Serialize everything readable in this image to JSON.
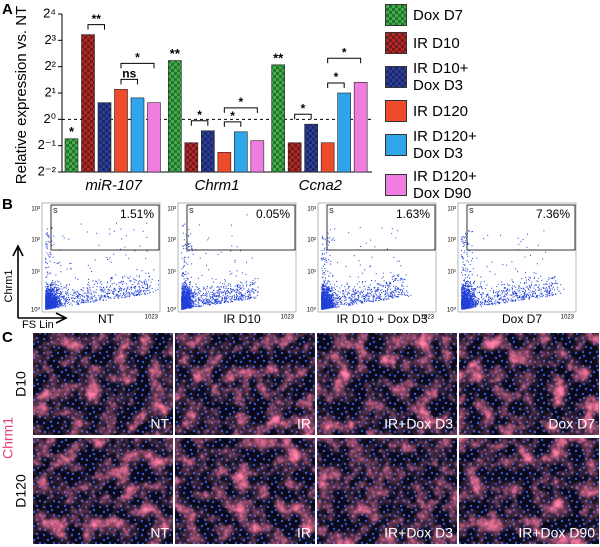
{
  "panel_labels": [
    "A",
    "B",
    "C"
  ],
  "chart_data": {
    "type": "bar",
    "y_label": "Relative expression vs. NT",
    "categories": [
      "miR-107",
      "Chrm1",
      "Ccna2"
    ],
    "series": [
      {
        "name": "Dox D7",
        "color": "#3fae49",
        "pattern": "checker",
        "values": [
          0.6,
          4.7,
          4.2
        ]
      },
      {
        "name": "IR D10",
        "color": "#b02828",
        "pattern": "checker",
        "values": [
          9.3,
          0.54,
          0.54
        ]
      },
      {
        "name": "IR D10+ Dox D3",
        "color": "#2b3f99",
        "pattern": "checker",
        "values": [
          1.55,
          0.74,
          0.88
        ]
      },
      {
        "name": "IR D120",
        "color": "#ee4a2c",
        "values": [
          2.2,
          0.42,
          0.54
        ]
      },
      {
        "name": "IR D120+ Dox D3",
        "color": "#2fa6ea",
        "values": [
          1.76,
          0.72,
          2.0
        ]
      },
      {
        "name": "IR D120+ Dox D90",
        "color": "#f07ce0",
        "values": [
          1.55,
          0.57,
          2.65
        ]
      }
    ],
    "ylim": [
      0.25,
      16
    ],
    "yticks": [
      {
        "value": 0.25,
        "label": "2⁻²"
      },
      {
        "value": 0.5,
        "label": "2⁻¹"
      },
      {
        "value": 1,
        "label": "2⁰"
      },
      {
        "value": 2,
        "label": "2¹"
      },
      {
        "value": 4,
        "label": "2²"
      },
      {
        "value": 8,
        "label": "2³"
      },
      {
        "value": 16,
        "label": "2⁴"
      }
    ],
    "log_scale": true,
    "reference_line": 1,
    "legend": "right",
    "annotations": [
      "*",
      "**",
      "ns",
      "*",
      "**",
      "*",
      "*",
      "*",
      "**",
      "*",
      "*",
      "*"
    ]
  },
  "flow": {
    "y_axis": "Chrm1",
    "x_axis": "FS Lin",
    "gate_label": "S",
    "y_ticks": [
      "10⁰",
      "10¹",
      "10²",
      "10³"
    ],
    "x_max": "1023",
    "plots": [
      {
        "label": "NT",
        "percent": "1.51%"
      },
      {
        "label": "IR D10",
        "percent": "0.05%"
      },
      {
        "label": "IR D10 + Dox D3",
        "percent": "1.63%"
      },
      {
        "label": "Dox D7",
        "percent": "7.36%"
      }
    ]
  },
  "micrographs": {
    "stain": "Chrm1",
    "rows": [
      {
        "label": "D10",
        "images": [
          "NT",
          "IR",
          "IR+Dox D3",
          "Dox D7"
        ]
      },
      {
        "label": "D120",
        "images": [
          "NT",
          "IR",
          "IR+Dox D3",
          "IR+Dox D90"
        ]
      }
    ]
  }
}
